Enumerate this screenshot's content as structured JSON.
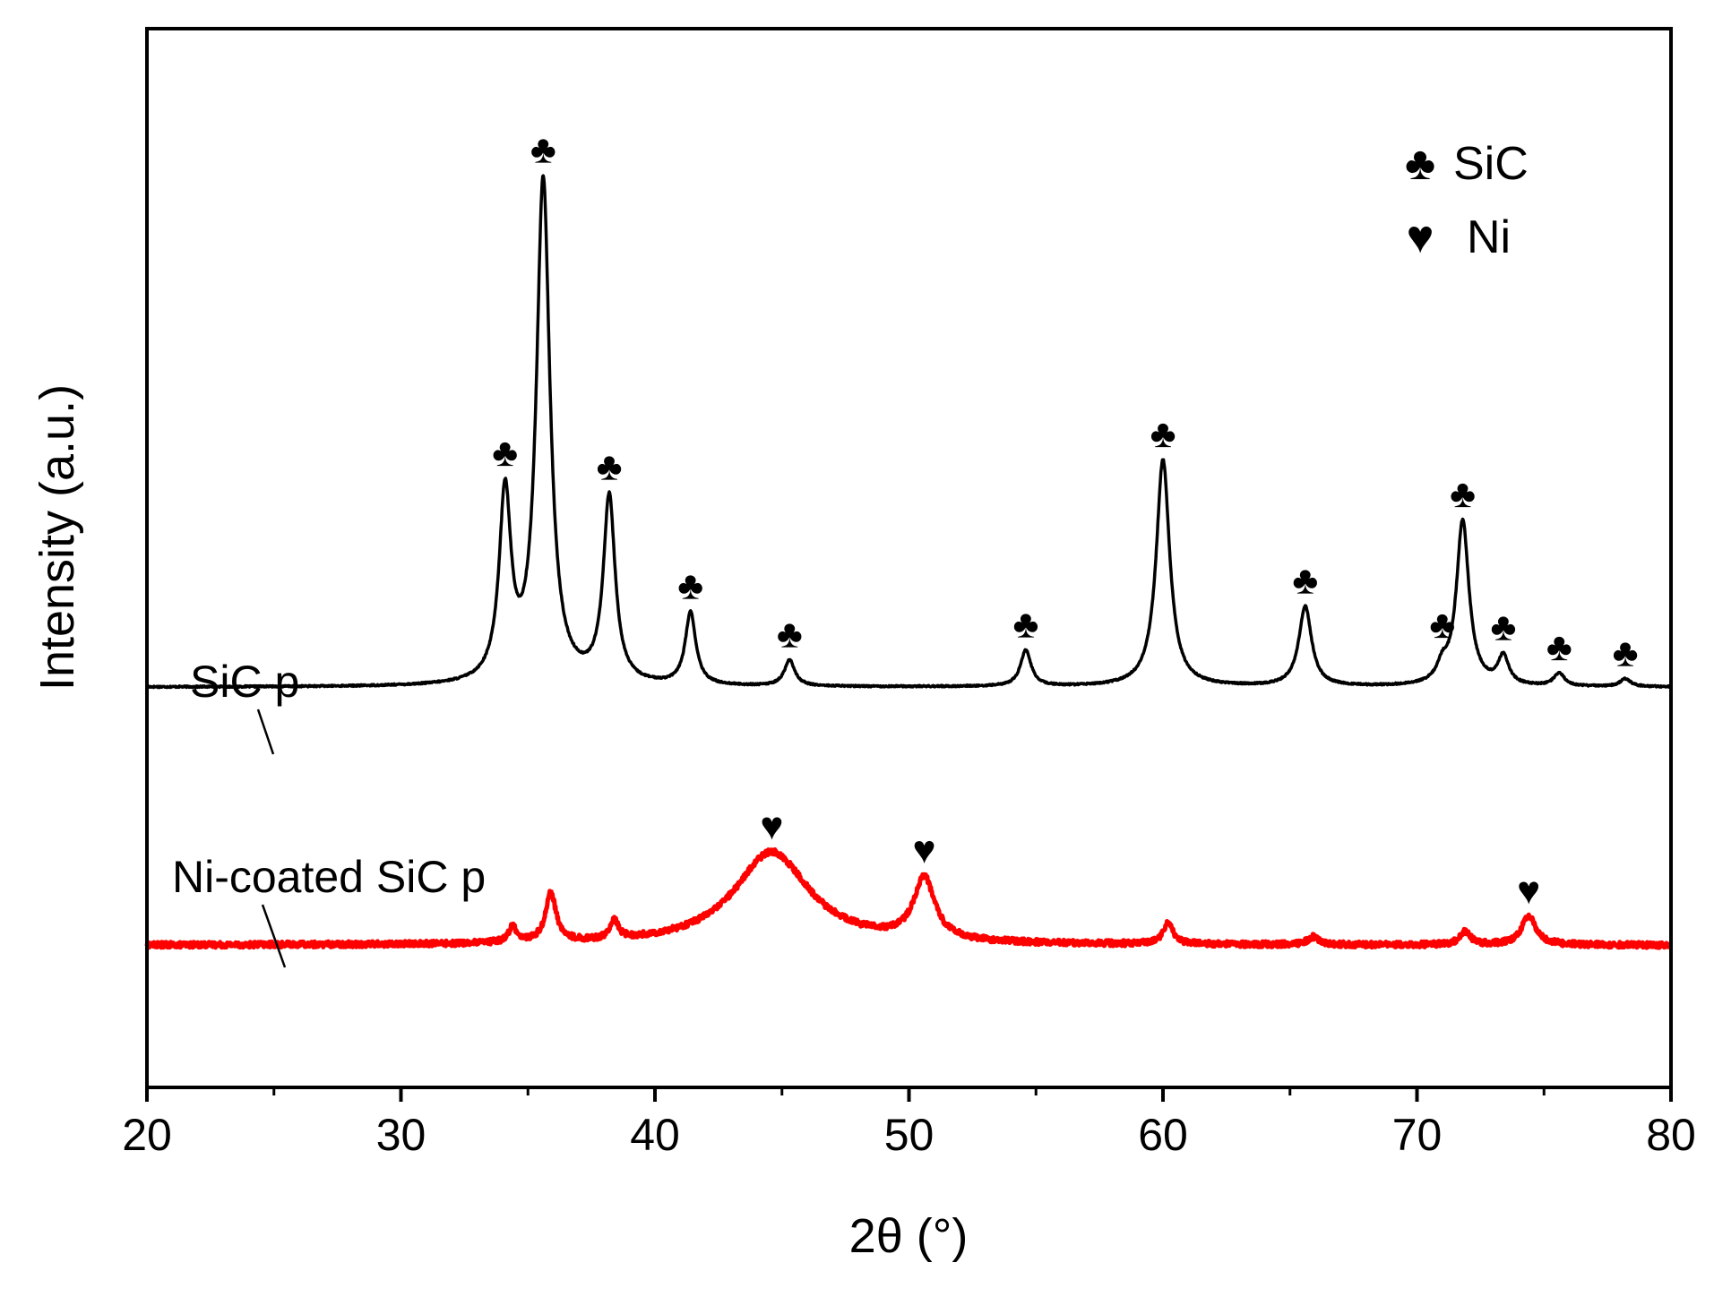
{
  "chart_data": {
    "type": "line",
    "title": "",
    "xlabel": "2θ (°)",
    "ylabel": "Intensity (a.u.)",
    "xlim": [
      20,
      80
    ],
    "ylim": [
      -0.55,
      3.55
    ],
    "x_ticks": [
      20,
      30,
      40,
      50,
      60,
      70,
      80
    ],
    "x_tick_labels": [
      "20",
      "30",
      "40",
      "50",
      "60",
      "70",
      "80"
    ],
    "y_ticks_shown": false,
    "grid": false,
    "legend": {
      "position": "top-right",
      "entries": [
        {
          "symbol": "♣",
          "label": "SiC"
        },
        {
          "symbol": "♥",
          "label": "Ni"
        }
      ]
    },
    "series": [
      {
        "name": "SiC p",
        "color": "#000000",
        "baseline": 1.0,
        "peaks": [
          {
            "x": 34.1,
            "height": 0.72,
            "width": 0.28
          },
          {
            "x": 35.6,
            "height": 1.95,
            "width": 0.32
          },
          {
            "x": 38.2,
            "height": 0.72,
            "width": 0.28
          },
          {
            "x": 41.4,
            "height": 0.28,
            "width": 0.25
          },
          {
            "x": 45.3,
            "height": 0.1,
            "width": 0.25
          },
          {
            "x": 54.6,
            "height": 0.14,
            "width": 0.25
          },
          {
            "x": 60.0,
            "height": 0.88,
            "width": 0.32
          },
          {
            "x": 65.6,
            "height": 0.31,
            "width": 0.3
          },
          {
            "x": 71.0,
            "height": 0.06,
            "width": 0.25
          },
          {
            "x": 71.8,
            "height": 0.64,
            "width": 0.3
          },
          {
            "x": 73.4,
            "height": 0.11,
            "width": 0.25
          },
          {
            "x": 75.6,
            "height": 0.05,
            "width": 0.25
          },
          {
            "x": 78.2,
            "height": 0.03,
            "width": 0.25
          }
        ],
        "markers": [
          {
            "x": 34.1,
            "symbol": "♣"
          },
          {
            "x": 35.6,
            "symbol": "♣"
          },
          {
            "x": 38.2,
            "symbol": "♣"
          },
          {
            "x": 41.4,
            "symbol": "♣"
          },
          {
            "x": 45.3,
            "symbol": "♣"
          },
          {
            "x": 54.6,
            "symbol": "♣"
          },
          {
            "x": 60.0,
            "symbol": "♣"
          },
          {
            "x": 65.6,
            "symbol": "♣"
          },
          {
            "x": 71.0,
            "symbol": "♣"
          },
          {
            "x": 71.8,
            "symbol": "♣"
          },
          {
            "x": 73.4,
            "symbol": "♣"
          },
          {
            "x": 75.6,
            "symbol": "♣"
          },
          {
            "x": 78.2,
            "symbol": "♣"
          }
        ]
      },
      {
        "name": "Ni-coated SiC p",
        "color": "#ff0000",
        "baseline": 0.0,
        "peaks": [
          {
            "x": 34.4,
            "height": 0.06,
            "width": 0.2
          },
          {
            "x": 35.9,
            "height": 0.19,
            "width": 0.25
          },
          {
            "x": 38.4,
            "height": 0.07,
            "width": 0.2
          },
          {
            "x": 44.6,
            "height": 0.36,
            "width": 1.8
          },
          {
            "x": 50.6,
            "height": 0.24,
            "width": 0.5
          },
          {
            "x": 60.2,
            "height": 0.08,
            "width": 0.25
          },
          {
            "x": 65.9,
            "height": 0.03,
            "width": 0.25
          },
          {
            "x": 71.9,
            "height": 0.05,
            "width": 0.25
          },
          {
            "x": 74.4,
            "height": 0.11,
            "width": 0.35
          }
        ],
        "markers": [
          {
            "x": 44.6,
            "symbol": "♥"
          },
          {
            "x": 50.6,
            "symbol": "♥"
          },
          {
            "x": 74.4,
            "symbol": "♥"
          }
        ]
      }
    ]
  },
  "annotations": {
    "sic_label": "SiC p",
    "ni_label": "Ni-coated SiC p",
    "legend_club": "♣",
    "legend_sic": "SiC",
    "legend_heart": "♥",
    "legend_ni": "Ni"
  }
}
